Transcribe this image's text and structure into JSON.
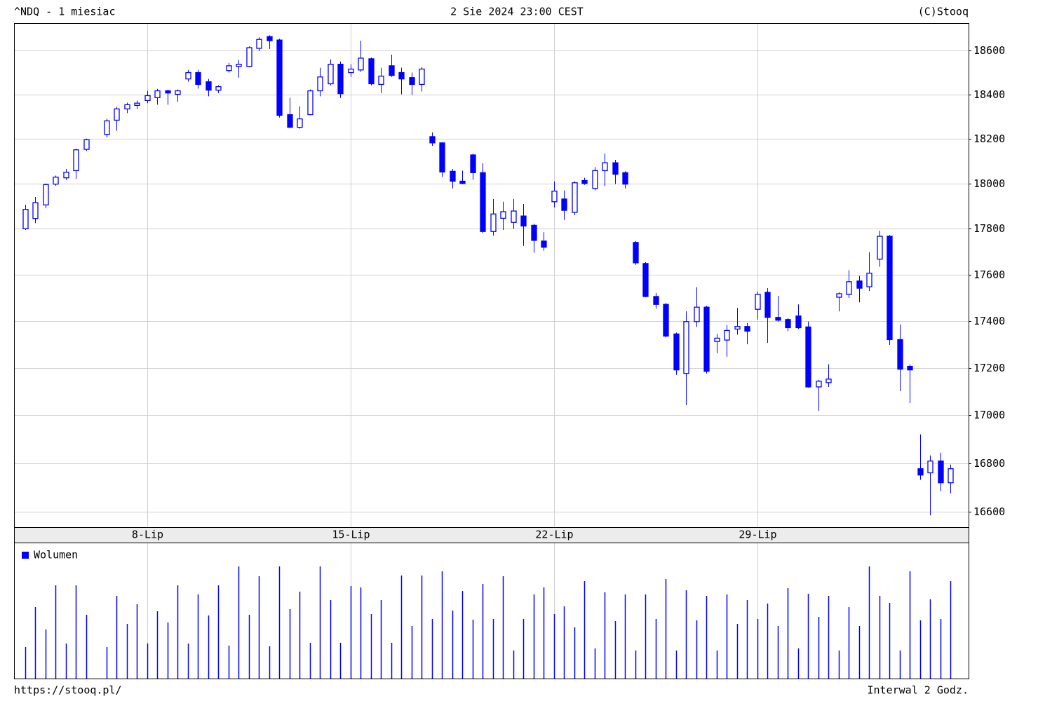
{
  "chart_data": {
    "type": "candlestick",
    "title_left": "^NDQ - 1 miesiac",
    "title_center": "2 Sie 2024 23:00 CEST",
    "title_right": "(C)Stooq",
    "footer_left": "https://stooq.pl/",
    "footer_right": "Interwal 2 Godz.",
    "log_scale": true,
    "grid": true,
    "ylim": [
      16537,
      18726
    ],
    "yticks": [
      16600,
      16800,
      17000,
      17200,
      17400,
      17600,
      17800,
      18000,
      18200,
      18400,
      18600
    ],
    "xlim": [
      -1.1,
      92.76
    ],
    "xticks": [
      {
        "value": 12,
        "label": "8-Lip"
      },
      {
        "value": 32,
        "label": "15-Lip"
      },
      {
        "value": 52,
        "label": "22-Lip"
      },
      {
        "value": 72,
        "label": "29-Lip"
      }
    ],
    "color": "#0000ff",
    "open": [
      17800,
      17845,
      17905,
      17997,
      18025,
      18057,
      18152,
      null,
      18219,
      18283,
      18334,
      18350,
      18372,
      18385,
      18416,
      18400,
      18470,
      18499,
      18457,
      18419,
      18508,
      18527,
      18527,
      18610,
      18664,
      18648,
      18308,
      18251,
      18308,
      18416,
      18448,
      18537,
      18499,
      18511,
      18562,
      18445,
      18530,
      18499,
      18476,
      18445,
      18209,
      18181,
      18054,
      18010,
      18127,
      18048,
      17788,
      17846,
      17828,
      17856,
      17815,
      17746,
      17919,
      17931,
      17872,
      18013,
      17978,
      18057,
      18092,
      18048,
      17740,
      17648,
      17505,
      17471,
      17344,
      17176,
      17397,
      17459,
      17312,
      17318,
      17365,
      17376,
      17450,
      17523,
      17415,
      17406,
      17421,
      17374,
      17119,
      17137,
      17502,
      17514,
      17572,
      17547,
      17667,
      17767,
      17320,
      17206,
      16777,
      16760,
      16809,
      16719
    ],
    "high": [
      17905,
      17940,
      18000,
      18035,
      18065,
      18155,
      18200,
      null,
      18290,
      18343,
      18362,
      18372,
      18416,
      18425,
      18422,
      18422,
      18511,
      18511,
      18470,
      18441,
      18543,
      18556,
      18619,
      18661,
      18670,
      18654,
      18384,
      18346,
      18422,
      18521,
      18559,
      18549,
      18537,
      18645,
      18568,
      18521,
      18581,
      18521,
      18499,
      18524,
      18228,
      18184,
      18064,
      18057,
      18133,
      18089,
      17931,
      17919,
      17931,
      17909,
      17822,
      17785,
      18009,
      17969,
      18009,
      18025,
      18073,
      18133,
      18105,
      18054,
      17746,
      17654,
      17520,
      17477,
      17350,
      17441,
      17545,
      17465,
      17344,
      17382,
      17456,
      17391,
      17526,
      17541,
      17508,
      17412,
      17471,
      17397,
      17149,
      17215,
      17523,
      17619,
      17594,
      17697,
      17791,
      17773,
      17385,
      17215,
      16920,
      16832,
      16844,
      16794
    ],
    "low": [
      17795,
      17825,
      17890,
      17990,
      18015,
      18020,
      18145,
      null,
      18206,
      18235,
      18315,
      18334,
      18360,
      18353,
      18353,
      18366,
      18457,
      18426,
      18391,
      18406,
      18499,
      18476,
      18524,
      18597,
      18607,
      18295,
      18248,
      18245,
      18305,
      18391,
      18441,
      18384,
      18479,
      18502,
      18441,
      18406,
      18479,
      18400,
      18397,
      18413,
      18168,
      18028,
      17978,
      17997,
      18016,
      17781,
      17770,
      17795,
      17800,
      17725,
      17695,
      17704,
      17894,
      17839,
      17860,
      17994,
      17969,
      17988,
      17997,
      17978,
      17642,
      17502,
      17452,
      17329,
      17170,
      17042,
      17374,
      17176,
      17262,
      17247,
      17341,
      17300,
      17406,
      17306,
      17397,
      17356,
      17365,
      17116,
      17018,
      17119,
      17441,
      17499,
      17480,
      17529,
      17634,
      17297,
      17101,
      17051,
      16731,
      16585,
      16685,
      16676
    ],
    "close": [
      17885,
      17915,
      17995,
      18028,
      18050,
      18150,
      18195,
      null,
      18280,
      18334,
      18353,
      18360,
      18394,
      18416,
      18406,
      18416,
      18499,
      18445,
      18419,
      18435,
      18530,
      18537,
      18613,
      18651,
      18645,
      18305,
      18251,
      18289,
      18416,
      18479,
      18537,
      18403,
      18515,
      18565,
      18448,
      18483,
      18486,
      18470,
      18445,
      18515,
      18181,
      18051,
      18010,
      18000,
      18048,
      17788,
      17865,
      17875,
      17878,
      17812,
      17749,
      17719,
      17966,
      17881,
      18003,
      18000,
      18057,
      18092,
      18041,
      17997,
      17651,
      17505,
      17471,
      17335,
      17191,
      17397,
      17459,
      17185,
      17326,
      17359,
      17376,
      17356,
      17514,
      17415,
      17403,
      17371,
      17371,
      17119,
      17143,
      17152,
      17517,
      17569,
      17541,
      17606,
      17767,
      17320,
      17194,
      17191,
      16751,
      16809,
      16719,
      16777
    ],
    "volume": {
      "name": "Wolumen",
      "color": "#0000ff",
      "ylim": [
        0,
        193
      ],
      "values": [
        45,
        102,
        70,
        133,
        50,
        133,
        91,
        null,
        45,
        118,
        78,
        106,
        50,
        96,
        80,
        133,
        50,
        120,
        90,
        133,
        47,
        160,
        91,
        146,
        46,
        160,
        99,
        124,
        51,
        160,
        112,
        51,
        132,
        130,
        92,
        112,
        51,
        147,
        75,
        147,
        85,
        153,
        97,
        125,
        84,
        135,
        85,
        146,
        40,
        85,
        120,
        130,
        92,
        103,
        73,
        139,
        43,
        123,
        82,
        120,
        40,
        120,
        85,
        142,
        40,
        126,
        83,
        118,
        40,
        120,
        78,
        112,
        85,
        107,
        75,
        129,
        43,
        121,
        88,
        118,
        40,
        102,
        75,
        160,
        118,
        108,
        40,
        153,
        83,
        113,
        85,
        139
      ]
    }
  }
}
